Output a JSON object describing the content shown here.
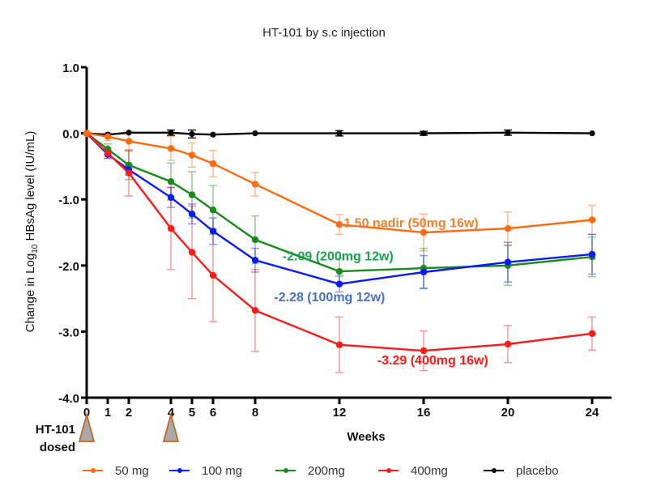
{
  "chart_data": {
    "type": "line",
    "title": "HT-101 by s.c injection",
    "xlabel": "Weeks",
    "ylabel": "Change in Log10 HBsAg level (IU/mL)",
    "ylabel_parts": {
      "pre": "Change in Log",
      "sub": "10",
      "post": " HBsAg level (IU/mL)"
    },
    "ylim": [
      -4.0,
      1.0
    ],
    "yticks": [
      1.0,
      0.0,
      -1.0,
      -2.0,
      -3.0,
      -4.0
    ],
    "ytick_labels": [
      "1.0",
      "0.0",
      "-1.0",
      "-2.0",
      "-3.0",
      "-4.0"
    ],
    "xlim": [
      0,
      24
    ],
    "xticks": [
      0,
      1,
      2,
      4,
      5,
      6,
      8,
      12,
      16,
      20,
      24
    ],
    "xtick_labels": [
      "0",
      "1",
      "2",
      "4",
      "5",
      "6",
      "8",
      "12",
      "16",
      "20",
      "24"
    ],
    "grid": false,
    "legend_position": "bottom",
    "x": [
      0,
      1,
      2,
      4,
      5,
      6,
      8,
      12,
      16,
      20,
      24
    ],
    "series": [
      {
        "name": "50 mg",
        "color": "#ff6a13",
        "values": [
          0.0,
          -0.05,
          -0.12,
          -0.23,
          -0.33,
          -0.46,
          -0.77,
          -1.38,
          -1.5,
          -1.44,
          -1.31
        ],
        "errors": [
          0.0,
          0.06,
          0.15,
          0.18,
          0.18,
          0.2,
          0.18,
          0.15,
          0.28,
          0.25,
          0.22
        ]
      },
      {
        "name": "100 mg",
        "color": "#0a1aff",
        "values": [
          0.0,
          -0.32,
          -0.55,
          -0.97,
          -1.22,
          -1.48,
          -1.92,
          -2.28,
          -2.1,
          -1.95,
          -1.83
        ],
        "errors": [
          0.0,
          0.06,
          0.08,
          0.15,
          0.15,
          0.2,
          0.18,
          0.12,
          0.25,
          0.3,
          0.3
        ]
      },
      {
        "name": "200mg",
        "color": "#1a8a1a",
        "values": [
          0.0,
          -0.24,
          -0.48,
          -0.73,
          -0.93,
          -1.16,
          -1.61,
          -2.09,
          -2.04,
          -2.0,
          -1.87
        ],
        "errors": [
          0.0,
          0.08,
          0.22,
          0.28,
          0.35,
          0.37,
          0.36,
          0.2,
          0.3,
          0.3,
          0.3
        ]
      },
      {
        "name": "400mg",
        "color": "#ff1a1a",
        "values": [
          0.0,
          -0.3,
          -0.6,
          -1.44,
          -1.8,
          -2.15,
          -2.68,
          -3.2,
          -3.29,
          -3.19,
          -3.03
        ],
        "errors": [
          0.0,
          0.08,
          0.35,
          0.62,
          0.7,
          0.7,
          0.62,
          0.42,
          0.3,
          0.28,
          0.25
        ]
      },
      {
        "name": "placebo",
        "color": "#000000",
        "values": [
          0.0,
          -0.02,
          0.01,
          0.01,
          -0.01,
          -0.02,
          0.0,
          0.0,
          0.0,
          0.01,
          0.0
        ],
        "errors": [
          0.0,
          0.0,
          0.0,
          0.04,
          0.06,
          0.0,
          0.0,
          0.04,
          0.03,
          0.04,
          0.0
        ]
      }
    ],
    "annotations": [
      {
        "text": "-1.50 nadir (50mg 16w)",
        "color": "#f07f2e",
        "anchor_x": 12,
        "anchor_y": -1.42
      },
      {
        "text": "-2.09  (200mg 12w)",
        "color": "#1aa050",
        "anchor_x": 9.3,
        "anchor_y": -1.92
      },
      {
        "text": "-2.28  (100mg 12w)",
        "color": "#4a6fc8",
        "anchor_x": 8.9,
        "anchor_y": -2.54
      },
      {
        "text": "-3.29  (400mg 16w)",
        "color": "#ff1a1a",
        "anchor_x": 13.8,
        "anchor_y": -3.5
      }
    ],
    "dosing": {
      "label_line1": "HT-101",
      "label_line2": "dosed",
      "weeks": [
        0,
        4
      ],
      "marker_fill": "#aaaaaa",
      "marker_stroke": "#c0682a"
    }
  }
}
